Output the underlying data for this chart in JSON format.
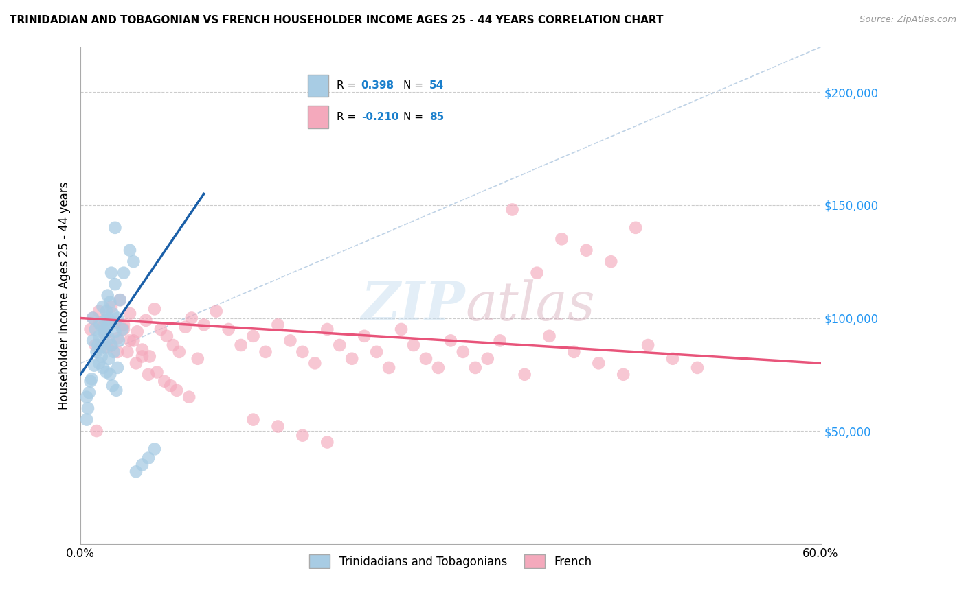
{
  "title": "TRINIDADIAN AND TOBAGONIAN VS FRENCH HOUSEHOLDER INCOME AGES 25 - 44 YEARS CORRELATION CHART",
  "source": "Source: ZipAtlas.com",
  "ylabel": "Householder Income Ages 25 - 44 years",
  "xlim": [
    0.0,
    0.6
  ],
  "ylim": [
    0,
    220000
  ],
  "xticks": [
    0.0,
    0.1,
    0.2,
    0.3,
    0.4,
    0.5,
    0.6
  ],
  "xticklabels": [
    "0.0%",
    "",
    "",
    "",
    "",
    "",
    "60.0%"
  ],
  "ytick_positions": [
    50000,
    100000,
    150000,
    200000
  ],
  "ytick_labels": [
    "$50,000",
    "$100,000",
    "$150,000",
    "$200,000"
  ],
  "blue_color": "#a8cce4",
  "pink_color": "#f4a9bc",
  "blue_line_color": "#1a5fa8",
  "pink_line_color": "#e8547a",
  "diag_color": "#b0c8e0",
  "grid_color": "#cccccc",
  "background_color": "#ffffff",
  "watermark_color": "#c8dff0",
  "legend_label1": "Trinidadians and Tobagonians",
  "legend_label2": "French",
  "blue_scatter_x": [
    0.005,
    0.008,
    0.01,
    0.01,
    0.012,
    0.013,
    0.014,
    0.015,
    0.015,
    0.016,
    0.017,
    0.018,
    0.018,
    0.019,
    0.02,
    0.02,
    0.021,
    0.021,
    0.022,
    0.022,
    0.023,
    0.023,
    0.024,
    0.024,
    0.025,
    0.025,
    0.026,
    0.026,
    0.027,
    0.028,
    0.028,
    0.029,
    0.03,
    0.03,
    0.031,
    0.032,
    0.034,
    0.035,
    0.04,
    0.043,
    0.045,
    0.05,
    0.055,
    0.06,
    0.005,
    0.006,
    0.007,
    0.009,
    0.011,
    0.016,
    0.02,
    0.022,
    0.025,
    0.028
  ],
  "blue_scatter_y": [
    65000,
    72000,
    90000,
    100000,
    95000,
    85000,
    88000,
    92000,
    80000,
    97000,
    83000,
    105000,
    78000,
    93000,
    99000,
    87000,
    103000,
    76000,
    96000,
    110000,
    82000,
    91000,
    107000,
    75000,
    88000,
    98000,
    102000,
    70000,
    85000,
    94000,
    115000,
    68000,
    100000,
    78000,
    90000,
    108000,
    95000,
    120000,
    130000,
    125000,
    32000,
    35000,
    38000,
    42000,
    55000,
    60000,
    67000,
    73000,
    79000,
    87000,
    95000,
    100000,
    120000,
    140000
  ],
  "pink_scatter_x": [
    0.008,
    0.01,
    0.012,
    0.015,
    0.018,
    0.02,
    0.022,
    0.025,
    0.028,
    0.03,
    0.032,
    0.035,
    0.038,
    0.04,
    0.043,
    0.046,
    0.05,
    0.053,
    0.056,
    0.06,
    0.065,
    0.07,
    0.075,
    0.08,
    0.085,
    0.09,
    0.095,
    0.1,
    0.11,
    0.12,
    0.13,
    0.14,
    0.15,
    0.16,
    0.17,
    0.18,
    0.19,
    0.2,
    0.21,
    0.22,
    0.23,
    0.24,
    0.25,
    0.26,
    0.27,
    0.28,
    0.29,
    0.3,
    0.31,
    0.32,
    0.33,
    0.34,
    0.36,
    0.38,
    0.4,
    0.42,
    0.44,
    0.46,
    0.48,
    0.5,
    0.37,
    0.41,
    0.43,
    0.35,
    0.45,
    0.39,
    0.055,
    0.045,
    0.068,
    0.078,
    0.062,
    0.073,
    0.088,
    0.015,
    0.02,
    0.025,
    0.03,
    0.035,
    0.04,
    0.05,
    0.14,
    0.16,
    0.18,
    0.2,
    0.013
  ],
  "pink_scatter_y": [
    95000,
    100000,
    88000,
    103000,
    96000,
    93000,
    87000,
    105000,
    98000,
    91000,
    108000,
    97000,
    85000,
    102000,
    90000,
    94000,
    86000,
    99000,
    83000,
    104000,
    95000,
    92000,
    88000,
    85000,
    96000,
    100000,
    82000,
    97000,
    103000,
    95000,
    88000,
    92000,
    85000,
    97000,
    90000,
    85000,
    80000,
    95000,
    88000,
    82000,
    92000,
    85000,
    78000,
    95000,
    88000,
    82000,
    78000,
    90000,
    85000,
    78000,
    82000,
    90000,
    75000,
    92000,
    85000,
    80000,
    75000,
    88000,
    82000,
    78000,
    120000,
    130000,
    125000,
    148000,
    140000,
    135000,
    75000,
    80000,
    72000,
    68000,
    76000,
    70000,
    65000,
    98000,
    93000,
    88000,
    85000,
    95000,
    90000,
    83000,
    55000,
    52000,
    48000,
    45000,
    50000
  ],
  "blue_trend_x": [
    0.0,
    0.1
  ],
  "blue_trend_y": [
    75000,
    155000
  ],
  "pink_trend_x": [
    0.0,
    0.6
  ],
  "pink_trend_y": [
    100000,
    80000
  ]
}
